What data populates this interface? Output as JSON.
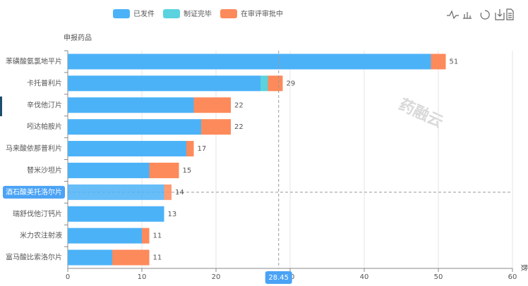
{
  "chart_data": {
    "type": "stacked-hbar",
    "categories": [
      "苯磺酸氨氯地平片",
      "卡托普利片",
      "辛伐他汀片",
      "吲达帕胺片",
      "马来酸依那普利片",
      "替米沙坦片",
      "酒石酸美托洛尔片",
      "瑞舒伐他汀钙片",
      "米力农注射液",
      "富马酸比索洛尔片"
    ],
    "series": [
      {
        "name": "已发件",
        "color": "#4cb2f7",
        "values": [
          49,
          26,
          17,
          18,
          16,
          11,
          13,
          13,
          10,
          6
        ]
      },
      {
        "name": "制证完毕",
        "color": "#5ad3de",
        "values": [
          0,
          1,
          0,
          0,
          0,
          0,
          0,
          0,
          0,
          0
        ]
      },
      {
        "name": "在审评审批中",
        "color": "#fd8a5b",
        "values": [
          2,
          2,
          5,
          4,
          1,
          4,
          1,
          0,
          1,
          5
        ]
      }
    ],
    "totals": [
      51,
      29,
      22,
      22,
      17,
      15,
      14,
      13,
      11,
      11
    ],
    "y_label": "申报药品",
    "x_label": "数",
    "xlim": [
      0,
      60
    ],
    "xticks": [
      0,
      10,
      20,
      30,
      40,
      50,
      60
    ],
    "grid": true,
    "axis_pointer": 28.45,
    "watermark": "药融云"
  }
}
